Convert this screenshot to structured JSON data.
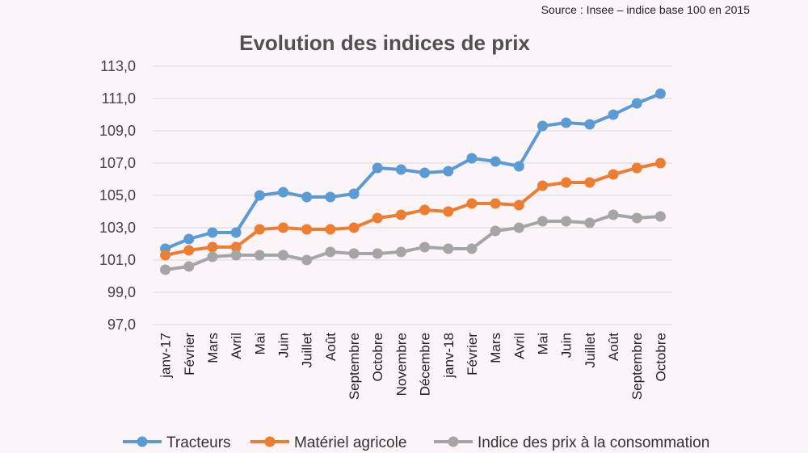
{
  "source": "Source : Insee – indice base 100 en 2015",
  "chart_data": {
    "type": "line",
    "title": "Evolution des indices de prix",
    "xlabel": "",
    "ylabel": "",
    "ylim": [
      97,
      113
    ],
    "yticks": [
      "97,0",
      "99,0",
      "101,0",
      "103,0",
      "105,0",
      "107,0",
      "109,0",
      "111,0",
      "113,0"
    ],
    "grid": true,
    "legend_position": "bottom",
    "categories": [
      "janv-17",
      "Février",
      "Mars",
      "Avril",
      "Mai",
      "Juin",
      "Juillet",
      "Août",
      "Septembre",
      "Octobre",
      "Novembre",
      "Décembre",
      "janv-18",
      "Février",
      "Mars",
      "Avril",
      "Mai",
      "Juin",
      "Juillet",
      "Août",
      "Septembre",
      "Octobre"
    ],
    "series": [
      {
        "name": "Tracteurs",
        "color": "#5b9bd5",
        "values": [
          101.7,
          102.3,
          102.7,
          102.7,
          105.0,
          105.2,
          104.9,
          104.9,
          105.1,
          106.7,
          106.6,
          106.4,
          106.5,
          107.3,
          107.1,
          106.8,
          109.3,
          109.5,
          109.4,
          110.0,
          110.7,
          111.3
        ]
      },
      {
        "name": "Matériel agricole",
        "color": "#ed7d31",
        "values": [
          101.3,
          101.6,
          101.8,
          101.8,
          102.9,
          103.0,
          102.9,
          102.9,
          103.0,
          103.6,
          103.8,
          104.1,
          104.0,
          104.5,
          104.5,
          104.4,
          105.6,
          105.8,
          105.8,
          106.3,
          106.7,
          107.0
        ]
      },
      {
        "name": "Indice des prix à la consommation",
        "color": "#a5a5a5",
        "values": [
          100.4,
          100.6,
          101.2,
          101.3,
          101.3,
          101.3,
          101.0,
          101.5,
          101.4,
          101.4,
          101.5,
          101.8,
          101.7,
          101.7,
          102.8,
          103.0,
          103.4,
          103.4,
          103.3,
          103.8,
          103.6,
          103.7
        ]
      }
    ]
  }
}
